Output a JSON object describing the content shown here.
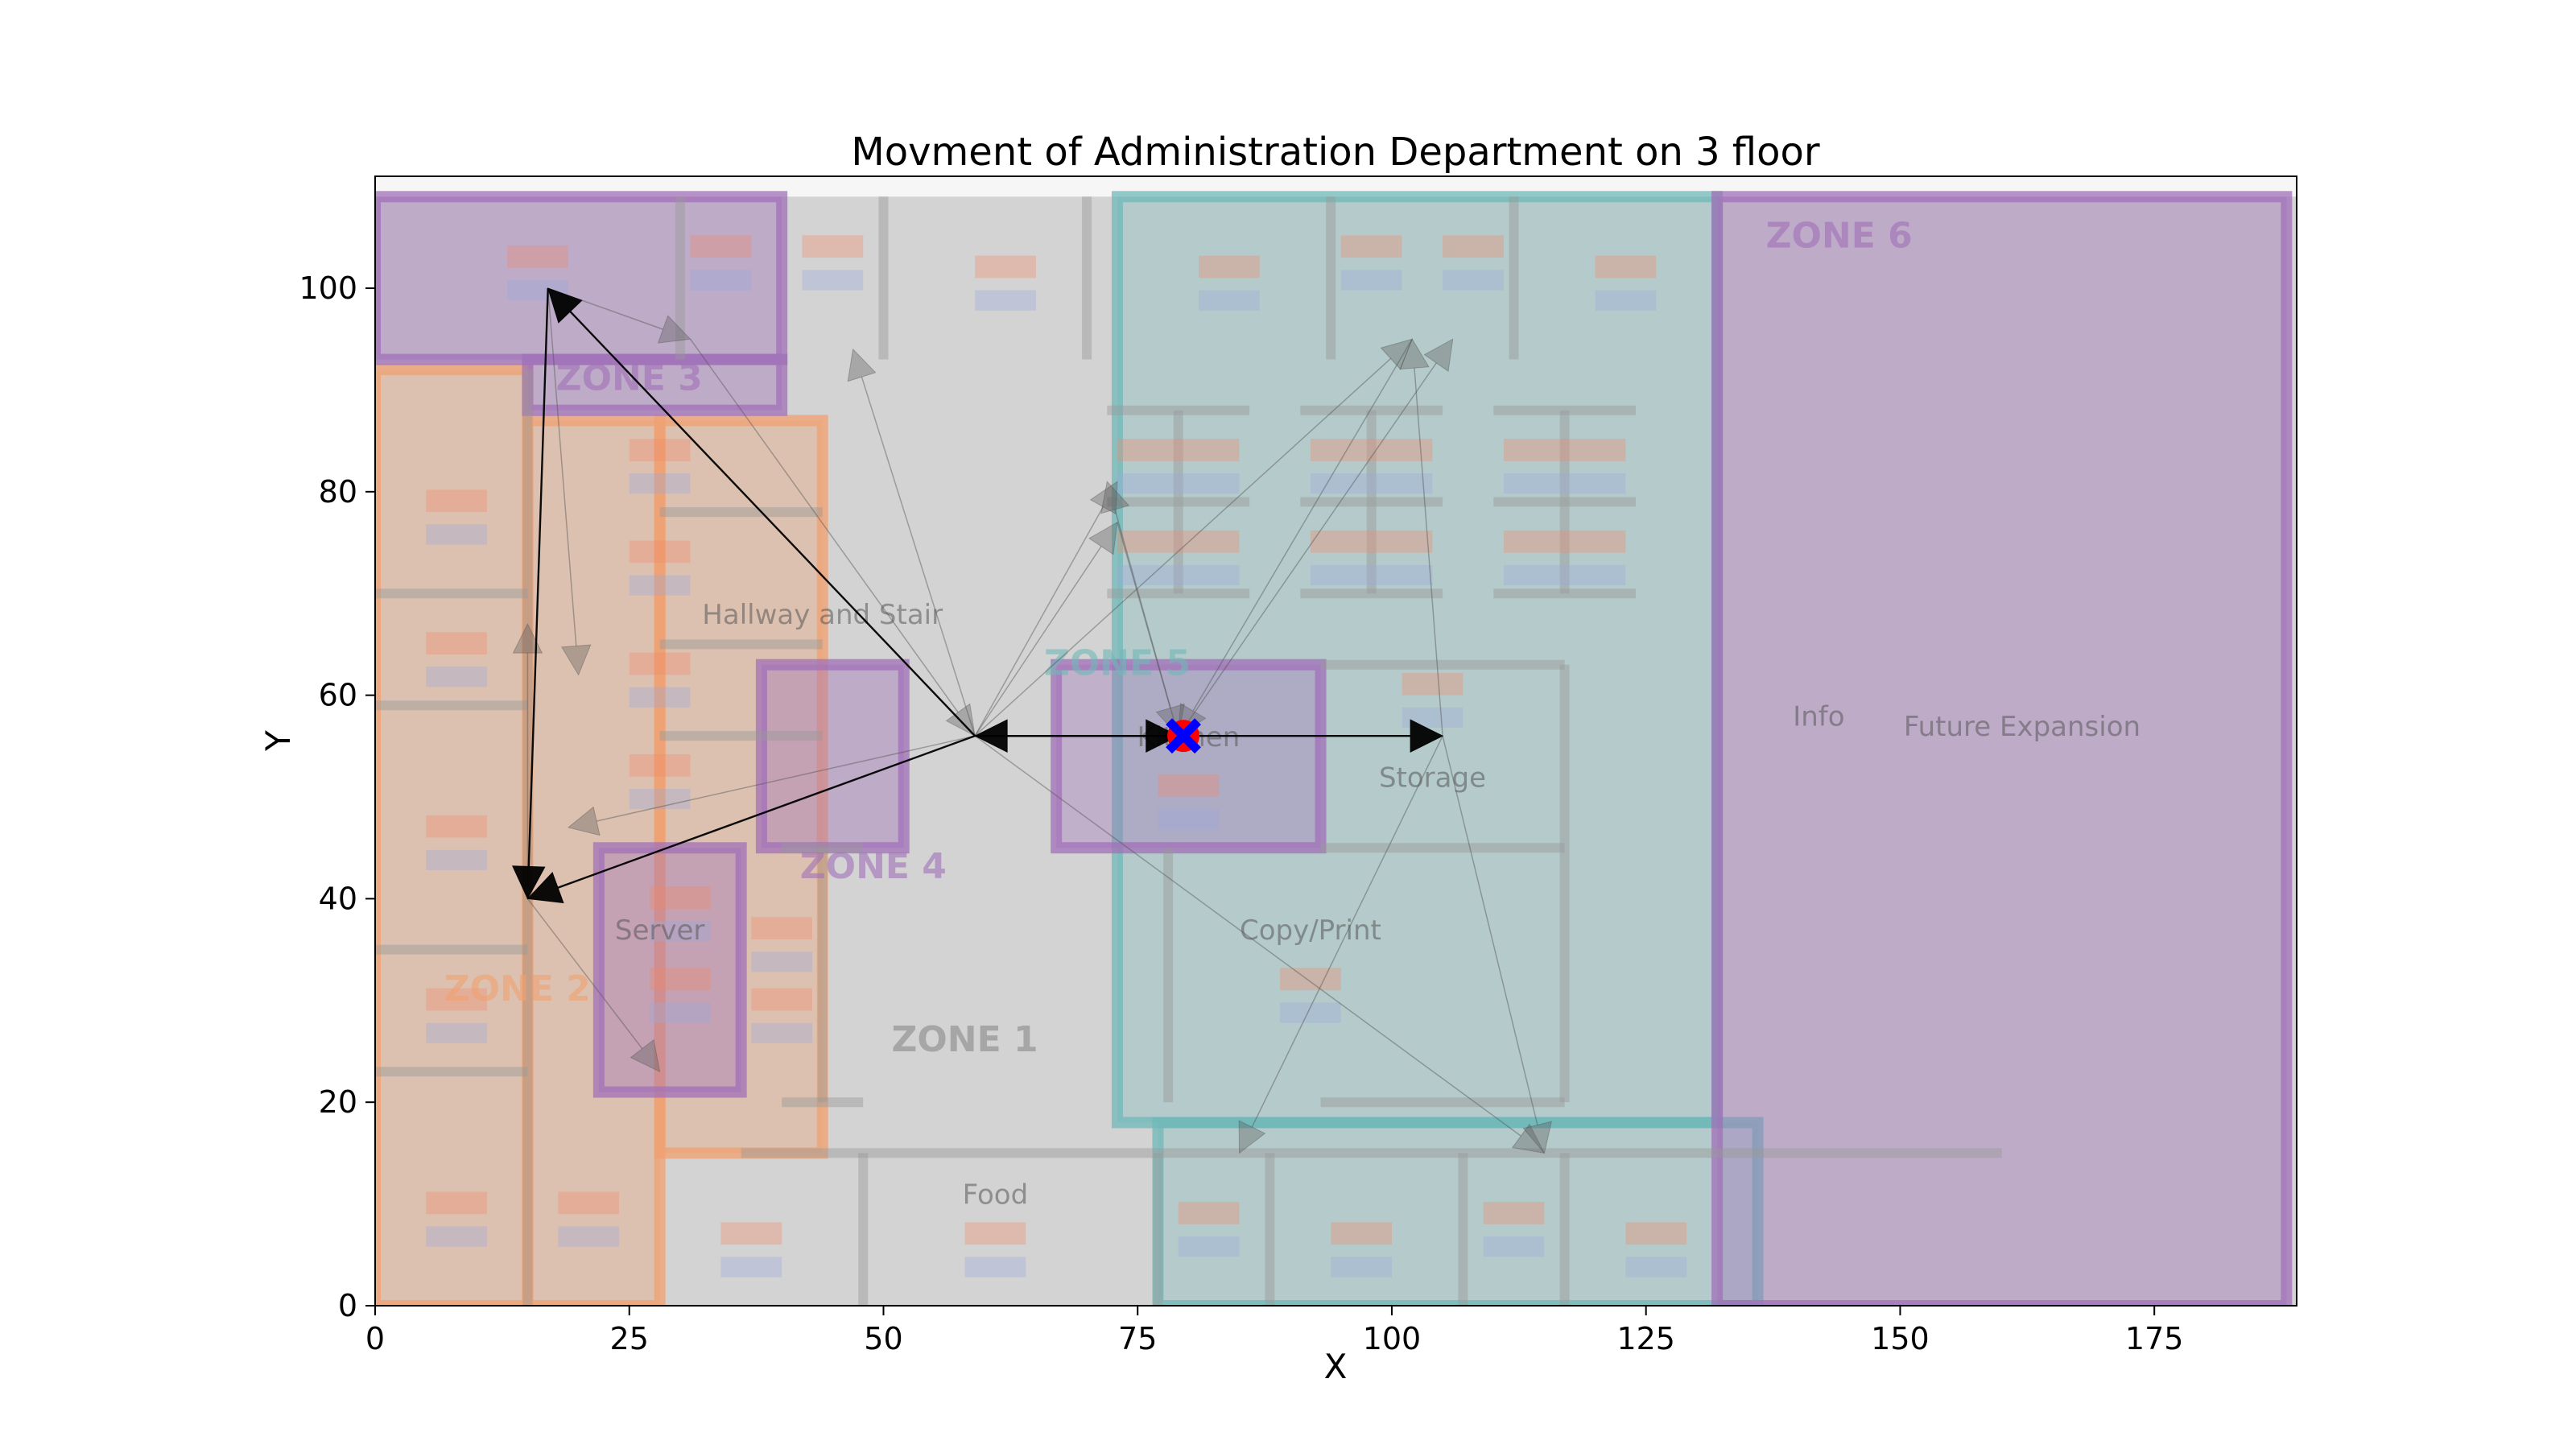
{
  "chart_data": {
    "type": "scatter",
    "title": "Movment of Administration Department on 3 floor",
    "xlabel": "X",
    "ylabel": "Y",
    "xlim": [
      0,
      189
    ],
    "ylim": [
      0,
      111
    ],
    "xticks": [
      0,
      25,
      50,
      75,
      100,
      125,
      150,
      175
    ],
    "yticks": [
      0,
      20,
      40,
      60,
      80,
      100
    ],
    "grid": false,
    "colors": {
      "zone_orange": "#f0a070",
      "zone_purple": "#a070b8",
      "zone_teal": "#70b8b8",
      "corridor_gray": "#cfcfcf",
      "wall_gray": "#999999",
      "arrow_strong": "#000000",
      "arrow_faint": "#555555",
      "marker_red": "#ff0000",
      "marker_blue": "#0000ff"
    },
    "floorplan": {
      "zones": [
        {
          "label": "ZONE 1",
          "color": "gray",
          "x": 58,
          "y": 25
        },
        {
          "label": "ZONE 2",
          "color": "orange",
          "x": 14,
          "y": 30
        },
        {
          "label": "ZONE 3",
          "color": "purple",
          "x": 25,
          "y": 90
        },
        {
          "label": "ZONE 4",
          "color": "purple",
          "x": 49,
          "y": 42
        },
        {
          "label": "ZONE 5",
          "color": "teal",
          "x": 73,
          "y": 62
        },
        {
          "label": "ZONE 6",
          "color": "purple",
          "x": 144,
          "y": 104
        }
      ],
      "room_labels": [
        {
          "text": "Hallway and Stair",
          "x": 44,
          "y": 67
        },
        {
          "text": "Kitchen",
          "x": 80,
          "y": 55
        },
        {
          "text": "Storage",
          "x": 104,
          "y": 51
        },
        {
          "text": "Server",
          "x": 28,
          "y": 36
        },
        {
          "text": "Copy/Print",
          "x": 92,
          "y": 36
        },
        {
          "text": "Food",
          "x": 61,
          "y": 10
        },
        {
          "text": "Future Expansion",
          "x": 162,
          "y": 56
        },
        {
          "text": "Info",
          "x": 142,
          "y": 57
        }
      ]
    },
    "movement": {
      "strong_arrows": [
        {
          "from": [
            59,
            56
          ],
          "to": [
            79,
            56
          ]
        },
        {
          "from": [
            79,
            56
          ],
          "to": [
            59,
            56
          ]
        },
        {
          "from": [
            79,
            56
          ],
          "to": [
            105,
            56
          ]
        },
        {
          "from": [
            59,
            56
          ],
          "to": [
            17,
            100
          ]
        },
        {
          "from": [
            17,
            100
          ],
          "to": [
            15,
            40
          ]
        },
        {
          "from": [
            59,
            56
          ],
          "to": [
            15,
            40
          ]
        }
      ],
      "faint_arrows": [
        {
          "from": [
            59,
            56
          ],
          "to": [
            47,
            94
          ]
        },
        {
          "from": [
            59,
            56
          ],
          "to": [
            73,
            81
          ]
        },
        {
          "from": [
            59,
            56
          ],
          "to": [
            73,
            77
          ]
        },
        {
          "from": [
            59,
            56
          ],
          "to": [
            102,
            95
          ]
        },
        {
          "from": [
            59,
            56
          ],
          "to": [
            19,
            47
          ]
        },
        {
          "from": [
            59,
            56
          ],
          "to": [
            115,
            15
          ]
        },
        {
          "from": [
            17,
            100
          ],
          "to": [
            31,
            95
          ]
        },
        {
          "from": [
            17,
            100
          ],
          "to": [
            20,
            62
          ]
        },
        {
          "from": [
            15,
            40
          ],
          "to": [
            15,
            67
          ]
        },
        {
          "from": [
            15,
            40
          ],
          "to": [
            28,
            23
          ]
        },
        {
          "from": [
            31,
            95
          ],
          "to": [
            59,
            56
          ]
        },
        {
          "from": [
            79,
            56
          ],
          "to": [
            106,
            95
          ]
        },
        {
          "from": [
            79,
            56
          ],
          "to": [
            72,
            81
          ]
        },
        {
          "from": [
            105,
            56
          ],
          "to": [
            85,
            15
          ]
        },
        {
          "from": [
            105,
            56
          ],
          "to": [
            102,
            95
          ]
        },
        {
          "from": [
            105,
            56
          ],
          "to": [
            115,
            15
          ]
        },
        {
          "from": [
            102,
            95
          ],
          "to": [
            79,
            56
          ]
        },
        {
          "from": [
            73,
            77
          ],
          "to": [
            79,
            56
          ]
        }
      ],
      "marker": {
        "x": 79.5,
        "y": 56
      }
    }
  }
}
